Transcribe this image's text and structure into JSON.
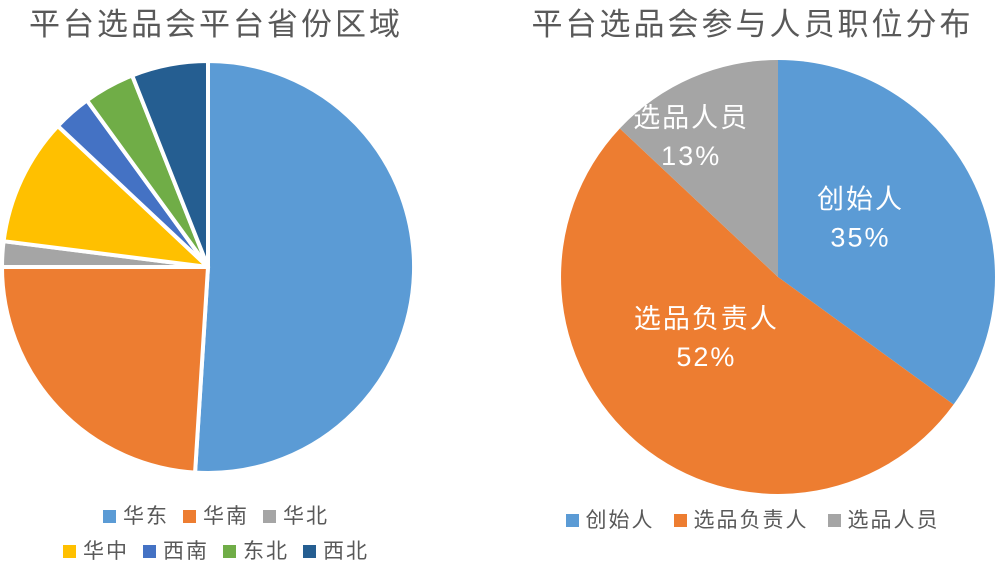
{
  "page": {
    "background_color": "#FFFFFF",
    "title_text_color": "#595959",
    "legend_text_color": "#595959",
    "data_label_text_color": "#FFFFFF"
  },
  "chart_data": [
    {
      "type": "pie",
      "title": "平台选品会平台省份区域",
      "categories": [
        "华东",
        "华南",
        "华北",
        "华中",
        "西南",
        "东北",
        "西北"
      ],
      "values": [
        51,
        24,
        2,
        10,
        3,
        4,
        6
      ],
      "unit": "%",
      "colors": [
        "#5B9BD5",
        "#ED7D31",
        "#A5A5A5",
        "#FFC000",
        "#4472C4",
        "#70AD47",
        "#255E91"
      ],
      "start_angle_deg": 0,
      "clockwise": true,
      "slice_gap_white": true,
      "data_labels_shown": false,
      "legend_position": "bottom",
      "legend_rows": [
        [
          0,
          1,
          2
        ],
        [
          3,
          4,
          5,
          6
        ]
      ]
    },
    {
      "type": "pie",
      "title": "平台选品会参与人员职位分布",
      "categories": [
        "创始人",
        "选品负责人",
        "选品人员"
      ],
      "values": [
        35,
        52,
        13
      ],
      "unit": "%",
      "colors": [
        "#5B9BD5",
        "#ED7D31",
        "#A5A5A5"
      ],
      "start_angle_deg": 0,
      "clockwise": true,
      "slice_gap_white": false,
      "data_labels_shown": true,
      "data_label_lines": [
        [
          "创始人",
          "35%"
        ],
        [
          "选品负责人",
          "52%"
        ],
        [
          "选品人员",
          "13%"
        ]
      ],
      "label_pos": [
        [
          0.38,
          -0.27
        ],
        [
          -0.33,
          0.28
        ],
        [
          -0.4,
          -0.645
        ]
      ],
      "legend_position": "bottom",
      "legend_rows": [
        [
          0,
          1,
          2
        ]
      ]
    }
  ]
}
